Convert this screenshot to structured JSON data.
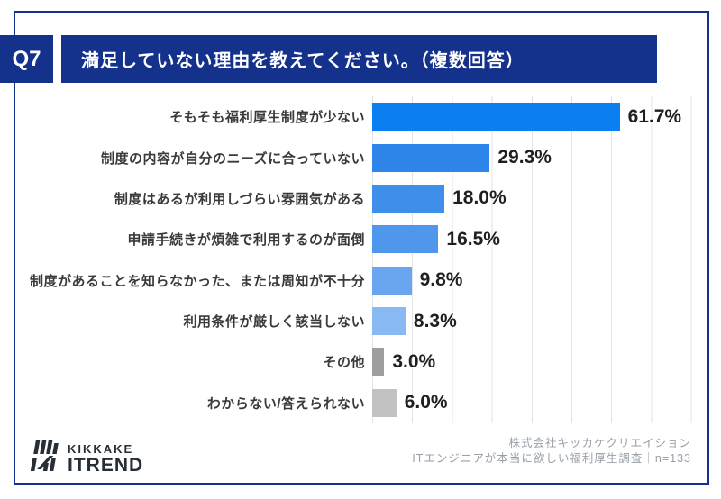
{
  "page": {
    "q_label": "Q7",
    "title": "満足していない理由を教えてください。（複数回答）"
  },
  "chart_data": {
    "type": "bar",
    "orientation": "horizontal",
    "title": "満足していない理由を教えてください。（複数回答）",
    "categories": [
      "そもそも福利厚生制度が少ない",
      "制度の内容が自分のニーズに合っていない",
      "制度はあるが利用しづらい雰囲気がある",
      "申請手続きが煩雑で利用するのが面倒",
      "制度があることを知らなかった、または周知が不十分",
      "利用条件が厳しく該当しない",
      "その他",
      "わからない/答えられない"
    ],
    "values": [
      61.7,
      29.3,
      18.0,
      16.5,
      9.8,
      8.3,
      3.0,
      6.0
    ],
    "value_labels": [
      "61.7%",
      "29.3%",
      "18.0%",
      "16.5%",
      "9.8%",
      "8.3%",
      "3.0%",
      "6.0%"
    ],
    "bar_colors": [
      "#0b7ef2",
      "#2e85e9",
      "#3f8eea",
      "#4e97ec",
      "#69a6ef",
      "#88b9f3",
      "#9e9e9e",
      "#c2c2c2"
    ],
    "xlim": [
      0,
      80
    ],
    "gridline_step": 10,
    "grid": true,
    "legend": false,
    "xlabel": "",
    "ylabel": ""
  },
  "footer": {
    "logo_line1": "KIKKAKE",
    "logo_line2": "ITREND",
    "source_line1": "株式会社キッカケクリエイション",
    "source_line2": "ITエンジニアが本当に欲しい福利厚生調査｜n=133"
  },
  "colors": {
    "navy": "#14318c",
    "grid": "#e3e3e3",
    "label": "#3a3a3a",
    "value": "#1f1f1f",
    "logo": "#262e36",
    "source": "#989fa8"
  }
}
